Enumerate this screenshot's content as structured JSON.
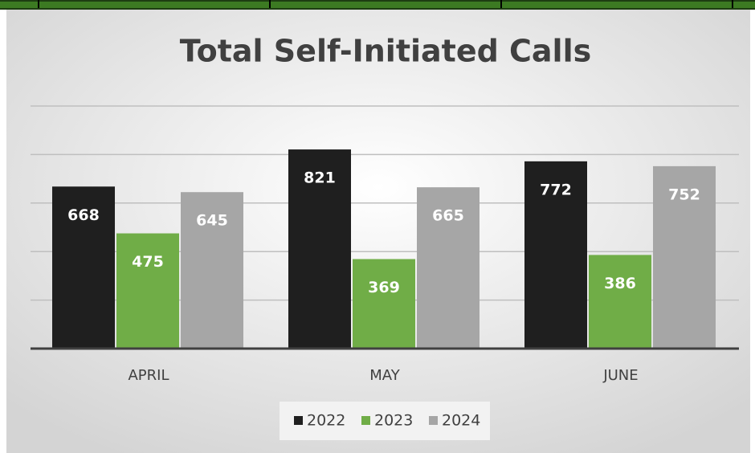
{
  "chart_data": {
    "type": "bar",
    "title": "Total Self-Initiated Calls",
    "categories": [
      "APRIL",
      "MAY",
      "JUNE"
    ],
    "series": [
      {
        "name": "2022",
        "color": "#1f1f1f",
        "values": [
          668,
          821,
          772
        ]
      },
      {
        "name": "2023",
        "color": "#70ad47",
        "values": [
          475,
          369,
          386
        ]
      },
      {
        "name": "2024",
        "color": "#a6a6a6",
        "values": [
          645,
          665,
          752
        ]
      }
    ],
    "ylim": [
      0,
      1000
    ],
    "yticks": [
      0,
      200,
      400,
      600,
      800,
      1000
    ],
    "grid": true,
    "legend": "bottom"
  }
}
